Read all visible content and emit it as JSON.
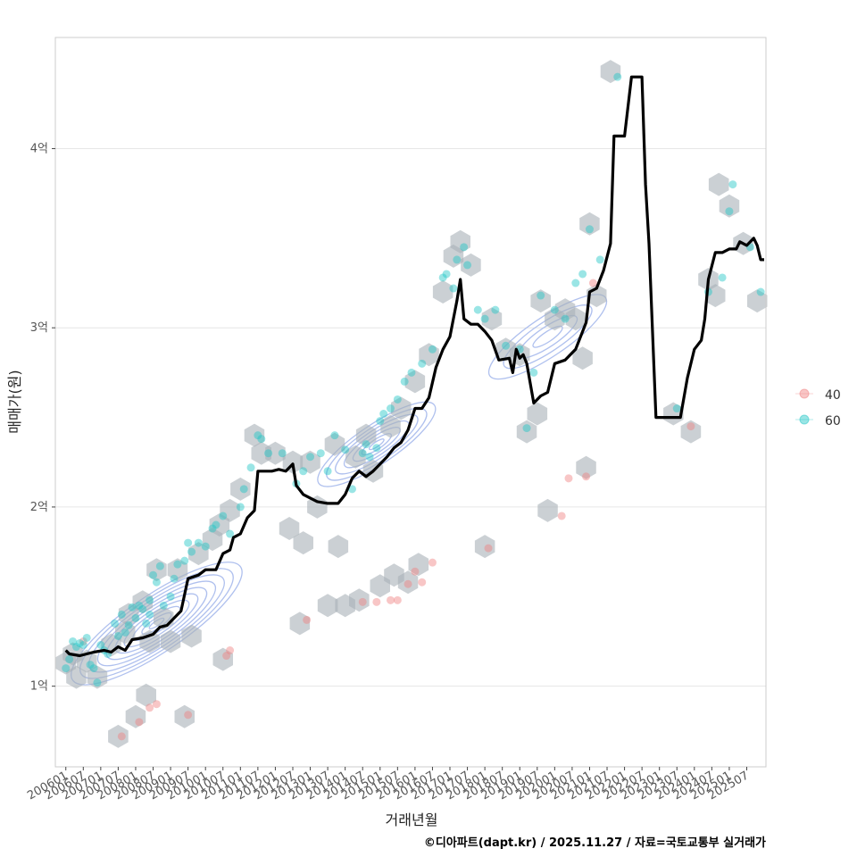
{
  "chart_data": {
    "type": "line",
    "title": "",
    "xlabel": "거래년월",
    "ylabel": "매매가(원)",
    "caption": "©디아파트(dapt.kr) / 2025.11.27 / 자료=국토교통부 실거래가",
    "x_tick_labels": [
      "200601",
      "200607",
      "200701",
      "200707",
      "200801",
      "200807",
      "200901",
      "200907",
      "201001",
      "201007",
      "201101",
      "201107",
      "201201",
      "201207",
      "201301",
      "201307",
      "201401",
      "201407",
      "201501",
      "201507",
      "201601",
      "201607",
      "201701",
      "201707",
      "201801",
      "201807",
      "201901",
      "201907",
      "202001",
      "202007",
      "202101",
      "202107",
      "202201",
      "202207",
      "202301",
      "202307",
      "202401",
      "202407",
      "202501",
      "202507"
    ],
    "y_ticks": [
      1,
      2,
      3,
      4
    ],
    "y_tick_labels": [
      "1억",
      "2억",
      "3억",
      "4억"
    ],
    "ylim": [
      0.55,
      4.62
    ],
    "xlim": [
      2005.7,
      2026.05
    ],
    "legend": {
      "position": "right",
      "entries": [
        {
          "label": "40",
          "color": "#F08080"
        },
        {
          "label": "60",
          "color": "#20C5C5"
        }
      ]
    },
    "colors": {
      "median_line": "#000000",
      "hexbin": "#A9B1B8",
      "contour": "#AFC0EE",
      "grid": "#E6E6E6",
      "panel_border": "#CCCCCC"
    },
    "median_series": [
      [
        2006.0,
        1.2
      ],
      [
        2006.1,
        1.18
      ],
      [
        2006.4,
        1.17
      ],
      [
        2006.8,
        1.19
      ],
      [
        2007.1,
        1.2
      ],
      [
        2007.3,
        1.19
      ],
      [
        2007.5,
        1.22
      ],
      [
        2007.7,
        1.2
      ],
      [
        2007.9,
        1.26
      ],
      [
        2008.2,
        1.27
      ],
      [
        2008.5,
        1.29
      ],
      [
        2008.7,
        1.33
      ],
      [
        2008.9,
        1.34
      ],
      [
        2009.1,
        1.38
      ],
      [
        2009.3,
        1.42
      ],
      [
        2009.5,
        1.6
      ],
      [
        2009.8,
        1.62
      ],
      [
        2010.0,
        1.65
      ],
      [
        2010.3,
        1.65
      ],
      [
        2010.5,
        1.74
      ],
      [
        2010.7,
        1.76
      ],
      [
        2010.8,
        1.83
      ],
      [
        2011.0,
        1.85
      ],
      [
        2011.2,
        1.94
      ],
      [
        2011.4,
        1.98
      ],
      [
        2011.5,
        2.2
      ],
      [
        2011.9,
        2.2
      ],
      [
        2012.1,
        2.21
      ],
      [
        2012.3,
        2.2
      ],
      [
        2012.5,
        2.24
      ],
      [
        2012.6,
        2.12
      ],
      [
        2012.8,
        2.07
      ],
      [
        2013.0,
        2.05
      ],
      [
        2013.2,
        2.03
      ],
      [
        2013.5,
        2.02
      ],
      [
        2013.8,
        2.02
      ],
      [
        2014.0,
        2.07
      ],
      [
        2014.2,
        2.16
      ],
      [
        2014.4,
        2.2
      ],
      [
        2014.6,
        2.17
      ],
      [
        2014.8,
        2.2
      ],
      [
        2015.0,
        2.24
      ],
      [
        2015.2,
        2.28
      ],
      [
        2015.4,
        2.33
      ],
      [
        2015.6,
        2.36
      ],
      [
        2015.8,
        2.43
      ],
      [
        2016.0,
        2.55
      ],
      [
        2016.2,
        2.55
      ],
      [
        2016.4,
        2.61
      ],
      [
        2016.6,
        2.78
      ],
      [
        2016.8,
        2.88
      ],
      [
        2017.0,
        2.95
      ],
      [
        2017.2,
        3.15
      ],
      [
        2017.3,
        3.27
      ],
      [
        2017.4,
        3.05
      ],
      [
        2017.6,
        3.02
      ],
      [
        2017.8,
        3.02
      ],
      [
        2018.0,
        2.98
      ],
      [
        2018.2,
        2.93
      ],
      [
        2018.4,
        2.82
      ],
      [
        2018.7,
        2.83
      ],
      [
        2018.8,
        2.75
      ],
      [
        2018.9,
        2.88
      ],
      [
        2019.0,
        2.83
      ],
      [
        2019.1,
        2.85
      ],
      [
        2019.2,
        2.8
      ],
      [
        2019.4,
        2.58
      ],
      [
        2019.6,
        2.62
      ],
      [
        2019.8,
        2.64
      ],
      [
        2020.0,
        2.8
      ],
      [
        2020.3,
        2.82
      ],
      [
        2020.6,
        2.88
      ],
      [
        2020.9,
        3.03
      ],
      [
        2021.0,
        3.2
      ],
      [
        2021.2,
        3.22
      ],
      [
        2021.4,
        3.32
      ],
      [
        2021.6,
        3.47
      ],
      [
        2021.7,
        4.07
      ],
      [
        2022.0,
        4.07
      ],
      [
        2022.2,
        4.4
      ],
      [
        2022.5,
        4.4
      ],
      [
        2022.6,
        3.8
      ],
      [
        2022.7,
        3.47
      ],
      [
        2022.9,
        2.5
      ],
      [
        2023.6,
        2.5
      ],
      [
        2023.8,
        2.72
      ],
      [
        2024.0,
        2.88
      ],
      [
        2024.2,
        2.93
      ],
      [
        2024.3,
        3.05
      ],
      [
        2024.4,
        3.27
      ],
      [
        2024.6,
        3.42
      ],
      [
        2024.8,
        3.42
      ],
      [
        2025.0,
        3.44
      ],
      [
        2025.2,
        3.44
      ],
      [
        2025.3,
        3.48
      ],
      [
        2025.5,
        3.46
      ],
      [
        2025.7,
        3.5
      ],
      [
        2025.8,
        3.46
      ],
      [
        2025.9,
        3.38
      ],
      [
        2026.0,
        3.38
      ]
    ],
    "hexbins": [
      [
        2006.0,
        1.13
      ],
      [
        2006.2,
        1.18
      ],
      [
        2006.3,
        1.05
      ],
      [
        2006.6,
        1.14
      ],
      [
        2006.9,
        1.05
      ],
      [
        2007.3,
        1.23
      ],
      [
        2007.5,
        0.72
      ],
      [
        2007.7,
        1.3
      ],
      [
        2007.8,
        1.4
      ],
      [
        2008.0,
        0.83
      ],
      [
        2008.2,
        1.47
      ],
      [
        2008.3,
        0.95
      ],
      [
        2008.4,
        1.25
      ],
      [
        2008.6,
        1.65
      ],
      [
        2008.8,
        1.38
      ],
      [
        2009.0,
        1.25
      ],
      [
        2009.2,
        1.65
      ],
      [
        2009.4,
        0.83
      ],
      [
        2009.6,
        1.28
      ],
      [
        2009.8,
        1.74
      ],
      [
        2010.2,
        1.82
      ],
      [
        2010.4,
        1.9
      ],
      [
        2010.5,
        1.15
      ],
      [
        2010.7,
        1.98
      ],
      [
        2011.0,
        2.1
      ],
      [
        2011.4,
        2.4
      ],
      [
        2011.6,
        2.3
      ],
      [
        2012.0,
        2.3
      ],
      [
        2012.4,
        1.88
      ],
      [
        2012.5,
        2.25
      ],
      [
        2012.7,
        1.35
      ],
      [
        2012.8,
        1.8
      ],
      [
        2013.0,
        2.25
      ],
      [
        2013.2,
        2.0
      ],
      [
        2013.5,
        1.45
      ],
      [
        2013.7,
        2.35
      ],
      [
        2013.8,
        1.78
      ],
      [
        2014.0,
        1.45
      ],
      [
        2014.3,
        2.28
      ],
      [
        2014.4,
        1.48
      ],
      [
        2014.6,
        2.4
      ],
      [
        2014.8,
        2.2
      ],
      [
        2015.0,
        1.56
      ],
      [
        2015.3,
        2.45
      ],
      [
        2015.4,
        1.62
      ],
      [
        2015.6,
        2.55
      ],
      [
        2015.8,
        1.58
      ],
      [
        2016.0,
        2.7
      ],
      [
        2016.1,
        1.68
      ],
      [
        2016.4,
        2.85
      ],
      [
        2016.8,
        3.2
      ],
      [
        2017.1,
        3.4
      ],
      [
        2017.3,
        3.48
      ],
      [
        2017.6,
        3.35
      ],
      [
        2018.0,
        1.78
      ],
      [
        2018.2,
        3.05
      ],
      [
        2018.6,
        2.88
      ],
      [
        2019.0,
        2.85
      ],
      [
        2019.2,
        2.42
      ],
      [
        2019.5,
        2.52
      ],
      [
        2019.6,
        3.15
      ],
      [
        2019.8,
        1.98
      ],
      [
        2020.0,
        3.05
      ],
      [
        2020.3,
        3.1
      ],
      [
        2020.6,
        3.05
      ],
      [
        2020.8,
        2.83
      ],
      [
        2020.9,
        2.22
      ],
      [
        2021.0,
        3.58
      ],
      [
        2021.2,
        3.18
      ],
      [
        2021.6,
        4.43
      ],
      [
        2023.4,
        2.52
      ],
      [
        2023.9,
        2.42
      ],
      [
        2024.4,
        3.27
      ],
      [
        2024.6,
        3.18
      ],
      [
        2024.7,
        3.8
      ],
      [
        2025.0,
        3.68
      ],
      [
        2025.4,
        3.47
      ],
      [
        2025.8,
        3.15
      ]
    ],
    "points_60": [
      [
        2006.0,
        1.1
      ],
      [
        2006.1,
        1.15
      ],
      [
        2006.2,
        1.25
      ],
      [
        2006.3,
        1.22
      ],
      [
        2006.4,
        1.24
      ],
      [
        2006.5,
        1.23
      ],
      [
        2006.6,
        1.27
      ],
      [
        2006.7,
        1.12
      ],
      [
        2006.8,
        1.1
      ],
      [
        2006.9,
        1.02
      ],
      [
        2007.0,
        1.23
      ],
      [
        2007.1,
        1.2
      ],
      [
        2007.2,
        1.18
      ],
      [
        2007.4,
        1.35
      ],
      [
        2007.5,
        1.28
      ],
      [
        2007.6,
        1.4
      ],
      [
        2007.7,
        1.3
      ],
      [
        2007.8,
        1.34
      ],
      [
        2007.9,
        1.44
      ],
      [
        2008.0,
        1.38
      ],
      [
        2008.1,
        1.45
      ],
      [
        2008.2,
        1.43
      ],
      [
        2008.3,
        1.35
      ],
      [
        2008.4,
        1.48
      ],
      [
        2008.4,
        1.4
      ],
      [
        2008.5,
        1.62
      ],
      [
        2008.6,
        1.58
      ],
      [
        2008.7,
        1.67
      ],
      [
        2008.8,
        1.45
      ],
      [
        2009.0,
        1.5
      ],
      [
        2009.1,
        1.6
      ],
      [
        2009.2,
        1.68
      ],
      [
        2009.4,
        1.7
      ],
      [
        2009.5,
        1.8
      ],
      [
        2009.6,
        1.75
      ],
      [
        2009.8,
        1.8
      ],
      [
        2010.0,
        1.78
      ],
      [
        2010.2,
        1.88
      ],
      [
        2010.3,
        1.9
      ],
      [
        2010.5,
        1.95
      ],
      [
        2010.7,
        1.85
      ],
      [
        2011.0,
        2.0
      ],
      [
        2011.1,
        2.1
      ],
      [
        2011.3,
        2.22
      ],
      [
        2011.5,
        2.4
      ],
      [
        2011.6,
        2.38
      ],
      [
        2011.8,
        2.3
      ],
      [
        2012.2,
        2.3
      ],
      [
        2012.6,
        2.13
      ],
      [
        2012.8,
        2.2
      ],
      [
        2013.0,
        2.28
      ],
      [
        2013.3,
        2.3
      ],
      [
        2013.5,
        2.2
      ],
      [
        2013.7,
        2.4
      ],
      [
        2014.0,
        2.32
      ],
      [
        2014.2,
        2.1
      ],
      [
        2014.5,
        2.3
      ],
      [
        2014.6,
        2.35
      ],
      [
        2014.7,
        2.28
      ],
      [
        2014.9,
        2.33
      ],
      [
        2015.0,
        2.48
      ],
      [
        2015.1,
        2.52
      ],
      [
        2015.3,
        2.55
      ],
      [
        2015.5,
        2.6
      ],
      [
        2015.7,
        2.7
      ],
      [
        2015.9,
        2.75
      ],
      [
        2016.2,
        2.8
      ],
      [
        2016.5,
        2.88
      ],
      [
        2016.8,
        3.28
      ],
      [
        2016.9,
        3.3
      ],
      [
        2017.1,
        3.22
      ],
      [
        2017.2,
        3.38
      ],
      [
        2017.4,
        3.45
      ],
      [
        2017.5,
        3.35
      ],
      [
        2017.8,
        3.1
      ],
      [
        2018.0,
        3.05
      ],
      [
        2018.3,
        3.1
      ],
      [
        2018.6,
        2.9
      ],
      [
        2019.0,
        2.88
      ],
      [
        2019.2,
        2.44
      ],
      [
        2019.4,
        2.75
      ],
      [
        2019.6,
        3.18
      ],
      [
        2020.0,
        3.1
      ],
      [
        2020.3,
        3.05
      ],
      [
        2020.6,
        3.25
      ],
      [
        2020.8,
        3.3
      ],
      [
        2021.0,
        3.55
      ],
      [
        2021.3,
        3.38
      ],
      [
        2021.8,
        4.4
      ],
      [
        2023.5,
        2.55
      ],
      [
        2024.4,
        3.2
      ],
      [
        2024.8,
        3.28
      ],
      [
        2025.0,
        3.65
      ],
      [
        2025.1,
        3.8
      ],
      [
        2025.6,
        3.45
      ],
      [
        2025.9,
        3.2
      ]
    ],
    "points_40": [
      [
        2006.5,
        1.25
      ],
      [
        2007.6,
        0.72
      ],
      [
        2008.1,
        0.8
      ],
      [
        2008.4,
        0.88
      ],
      [
        2008.6,
        0.9
      ],
      [
        2009.5,
        0.84
      ],
      [
        2010.6,
        1.17
      ],
      [
        2010.7,
        1.2
      ],
      [
        2012.9,
        1.37
      ],
      [
        2014.5,
        1.47
      ],
      [
        2014.9,
        1.47
      ],
      [
        2015.3,
        1.48
      ],
      [
        2015.5,
        1.48
      ],
      [
        2015.8,
        1.57
      ],
      [
        2016.0,
        1.64
      ],
      [
        2016.2,
        1.58
      ],
      [
        2016.5,
        1.69
      ],
      [
        2018.1,
        1.77
      ],
      [
        2020.2,
        1.95
      ],
      [
        2020.4,
        2.16
      ],
      [
        2020.9,
        2.17
      ],
      [
        2021.1,
        3.25
      ],
      [
        2023.9,
        2.45
      ]
    ],
    "contours": [
      {
        "cx": 2008.6,
        "cy": 1.35,
        "rx": [
          0.25,
          0.5,
          0.8,
          1.1,
          1.4,
          1.7,
          2.0,
          2.3,
          2.6,
          2.9
        ]
      },
      {
        "cx": 2014.9,
        "cy": 2.35,
        "rx": [
          0.25,
          0.5,
          0.8,
          1.1,
          1.4,
          1.7,
          2.0
        ]
      },
      {
        "cx": 2019.8,
        "cy": 2.95,
        "rx": [
          0.5,
          1.0,
          1.5,
          2.0
        ]
      }
    ]
  }
}
